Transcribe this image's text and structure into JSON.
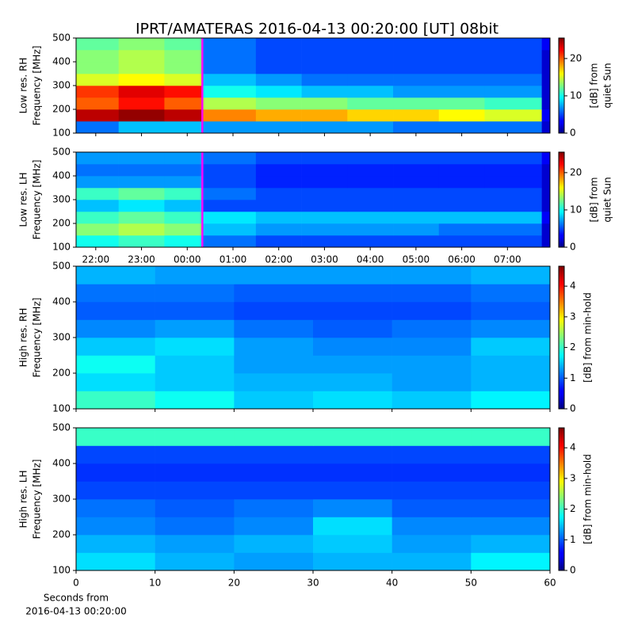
{
  "chart_data": [
    {
      "type": "heatmap",
      "title": "IPRT/AMATERAS 2016-04-13 00:20:00 [UT]   08bit",
      "ylabel": [
        "Low res. RH",
        "Frequency [MHz]"
      ],
      "colormap": "jet",
      "sharex": 1,
      "xlim": [
        0.57,
        10.93
      ],
      "ylim": [
        100,
        500
      ],
      "yticks": [
        100,
        200,
        300,
        400,
        500
      ],
      "xbins": [
        0.57,
        1.5,
        2.5,
        3.33,
        4.5,
        5.5,
        6.5,
        7.5,
        8.5,
        9.5,
        10.75,
        10.93
      ],
      "ybins": [
        100,
        150,
        200,
        250,
        300,
        350,
        400,
        450,
        500
      ],
      "z": [
        [
          6,
          8,
          8,
          7,
          7,
          7,
          7,
          6,
          6,
          6,
          2
        ],
        [
          24,
          25,
          24,
          19,
          18,
          18,
          17,
          17,
          16,
          15,
          3
        ],
        [
          20,
          22,
          20,
          14,
          13,
          13,
          12,
          12,
          12,
          11,
          2
        ],
        [
          21,
          23,
          22,
          10,
          9,
          8,
          8,
          7,
          7,
          7,
          2
        ],
        [
          15,
          16,
          15,
          8,
          7,
          6,
          6,
          6,
          6,
          6,
          2
        ],
        [
          13,
          14,
          13,
          6,
          5,
          5,
          5,
          5,
          5,
          5,
          2
        ],
        [
          13,
          14,
          13,
          6,
          5,
          5,
          5,
          5,
          5,
          5,
          2
        ],
        [
          12,
          13,
          12,
          6,
          5,
          5,
          5,
          5,
          5,
          5,
          3
        ]
      ],
      "vline": 3.33,
      "vline_color": "#ff00ff",
      "clim": [
        0,
        25.5
      ],
      "cticks": [
        0,
        10,
        20
      ],
      "clabel": [
        "[dB] from",
        "quiet Sun"
      ]
    },
    {
      "type": "heatmap",
      "ylabel": [
        "Low res. LH",
        "Frequency [MHz]"
      ],
      "colormap": "jet",
      "xlim": [
        0.57,
        10.93
      ],
      "ylim": [
        100,
        500
      ],
      "yticks": [
        100,
        200,
        300,
        400,
        500
      ],
      "xticks": [
        {
          "value": 1,
          "label": "22:00"
        },
        {
          "value": 2,
          "label": "23:00"
        },
        {
          "value": 3,
          "label": "00:00"
        },
        {
          "value": 4,
          "label": "01:00"
        },
        {
          "value": 5,
          "label": "02:00"
        },
        {
          "value": 6,
          "label": "03:00"
        },
        {
          "value": 7,
          "label": "04:00"
        },
        {
          "value": 8,
          "label": "05:00"
        },
        {
          "value": 9,
          "label": "06:00"
        },
        {
          "value": 10,
          "label": "07:00"
        }
      ],
      "xbins": [
        0.57,
        1.5,
        2.5,
        3.33,
        4.5,
        5.5,
        6.5,
        7.5,
        8.5,
        9.5,
        10.75,
        10.93
      ],
      "ybins": [
        100,
        150,
        200,
        250,
        300,
        350,
        400,
        450,
        500
      ],
      "z": [
        [
          10,
          11,
          10,
          6,
          5,
          5,
          5,
          5,
          5,
          5,
          2
        ],
        [
          13,
          14,
          13,
          8,
          7,
          7,
          7,
          7,
          6,
          6,
          2
        ],
        [
          11,
          12,
          11,
          9,
          8,
          8,
          8,
          8,
          8,
          8,
          3
        ],
        [
          8,
          9,
          8,
          5,
          5,
          5,
          5,
          5,
          5,
          5,
          2
        ],
        [
          11,
          12,
          11,
          6,
          5,
          5,
          5,
          5,
          5,
          5,
          2
        ],
        [
          7,
          7,
          7,
          5,
          4,
          4,
          4,
          4,
          4,
          4,
          2
        ],
        [
          6,
          6,
          6,
          5,
          4,
          4,
          4,
          4,
          4,
          4,
          2
        ],
        [
          7,
          7,
          7,
          6,
          5,
          5,
          5,
          5,
          5,
          5,
          3
        ]
      ],
      "vline": 3.33,
      "vline_color": "#ff00ff",
      "clim": [
        0,
        25.5
      ],
      "cticks": [
        0,
        10,
        20
      ],
      "clabel": [
        "[dB] from",
        "quiet Sun"
      ]
    },
    {
      "type": "heatmap",
      "ylabel": [
        "High res. RH",
        "Frequency [MHz]"
      ],
      "colormap": "jet",
      "sharex": 3,
      "xlim": [
        0,
        60
      ],
      "ylim": [
        100,
        500
      ],
      "yticks": [
        100,
        200,
        300,
        400,
        500
      ],
      "xbins": [
        0,
        10,
        20,
        30,
        40,
        50,
        60
      ],
      "ybins": [
        100,
        150,
        200,
        250,
        300,
        350,
        400,
        450,
        500
      ],
      "z": [
        [
          2.0,
          1.8,
          1.5,
          1.6,
          1.5,
          1.7
        ],
        [
          1.6,
          1.5,
          1.4,
          1.4,
          1.3,
          1.4
        ],
        [
          1.8,
          1.5,
          1.3,
          1.3,
          1.3,
          1.4
        ],
        [
          1.5,
          1.6,
          1.3,
          1.2,
          1.2,
          1.5
        ],
        [
          1.2,
          1.3,
          1.1,
          1.0,
          1.1,
          1.2
        ],
        [
          1.0,
          1.0,
          0.9,
          0.9,
          0.9,
          1.0
        ],
        [
          1.1,
          1.1,
          1.0,
          1.0,
          1.0,
          1.1
        ],
        [
          1.4,
          1.3,
          1.3,
          1.3,
          1.3,
          1.4
        ]
      ],
      "clim": [
        0,
        4.65
      ],
      "cticks": [
        0,
        1,
        2,
        3,
        4
      ],
      "clabel": [
        "[dB] from min-hold"
      ]
    },
    {
      "type": "heatmap",
      "ylabel": [
        "High res. LH",
        "Frequency [MHz]"
      ],
      "colormap": "jet",
      "xlabel": [
        "Seconds from",
        "2016-04-13 00:20:00"
      ],
      "xlim": [
        0,
        60
      ],
      "ylim": [
        100,
        500
      ],
      "yticks": [
        100,
        200,
        300,
        400,
        500
      ],
      "xticks": [
        0,
        10,
        20,
        30,
        40,
        50,
        60
      ],
      "xbins": [
        0,
        10,
        20,
        30,
        40,
        50,
        60
      ],
      "ybins": [
        100,
        150,
        200,
        250,
        300,
        350,
        400,
        450,
        500
      ],
      "z": [
        [
          1.6,
          1.4,
          1.3,
          1.4,
          1.4,
          1.7
        ],
        [
          1.4,
          1.3,
          1.4,
          1.5,
          1.3,
          1.4
        ],
        [
          1.2,
          1.1,
          1.2,
          1.6,
          1.2,
          1.2
        ],
        [
          1.1,
          1.0,
          1.1,
          1.2,
          1.0,
          1.0
        ],
        [
          0.9,
          0.9,
          0.9,
          0.9,
          0.9,
          0.9
        ],
        [
          0.8,
          0.8,
          0.8,
          0.8,
          0.8,
          0.8
        ],
        [
          0.9,
          0.9,
          0.9,
          0.9,
          0.9,
          0.9
        ],
        [
          2.0,
          2.0,
          2.0,
          2.0,
          2.0,
          2.0
        ]
      ],
      "clim": [
        0,
        4.65
      ],
      "cticks": [
        0,
        1,
        2,
        3,
        4
      ],
      "clabel": [
        "[dB] from min-hold"
      ]
    }
  ]
}
